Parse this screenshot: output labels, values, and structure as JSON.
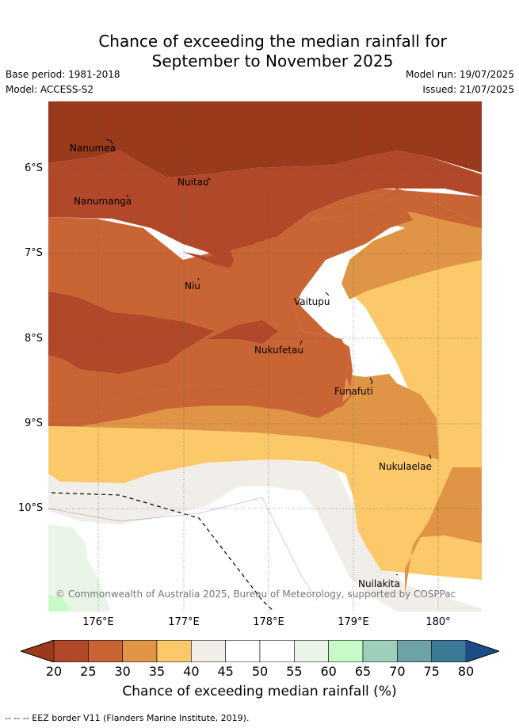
{
  "title_line1": "Chance of exceeding the median rainfall for",
  "title_line2": "September to November 2025",
  "meta": {
    "base_period": "Base period: 1981-2018",
    "model": "Model: ACCESS-S2",
    "model_run": "Model run: 19/07/2025",
    "issued": "Issued: 21/07/2025"
  },
  "axes": {
    "lat_labels": [
      "6°S",
      "7°S",
      "8°S",
      "9°S",
      "10°S"
    ],
    "lon_labels": [
      "176°E",
      "177°E",
      "178°E",
      "179°E",
      "180°"
    ]
  },
  "places": [
    {
      "name": "Nanumea"
    },
    {
      "name": "Nuitao"
    },
    {
      "name": "Nanumanga"
    },
    {
      "name": "Niu"
    },
    {
      "name": "Vaitupu"
    },
    {
      "name": "Nukufetau"
    },
    {
      "name": "Funafuti"
    },
    {
      "name": "Nukulaelae"
    },
    {
      "name": "Nuilakita"
    }
  ],
  "credit": "© Commonwealth of Australia 2025, Bureau of Meteorology, supported by COSPPac",
  "colorbar": {
    "label": "Chance of exceeding median rainfall (%)",
    "ticks": [
      "20",
      "25",
      "30",
      "35",
      "40",
      "45",
      "50",
      "55",
      "60",
      "65",
      "70",
      "75",
      "80"
    ],
    "colors": {
      "below20": "#9a3a1c",
      "20-25": "#b2482a",
      "25-30": "#c96535",
      "30-35": "#e09546",
      "35-40": "#fcc96a",
      "40-45": "#f1ede8",
      "45-50": "#ffffff",
      "50-55": "#ffffff",
      "55-60": "#e8f5e7",
      "60-65": "#c8fac8",
      "65-70": "#9ecfba",
      "70-75": "#6ea3a5",
      "75-80": "#3e7897",
      "above80": "#1c4c86"
    }
  },
  "footnote": "--  --  -- EEZ border V11 (Flanders Marine Institute, 2019)."
}
